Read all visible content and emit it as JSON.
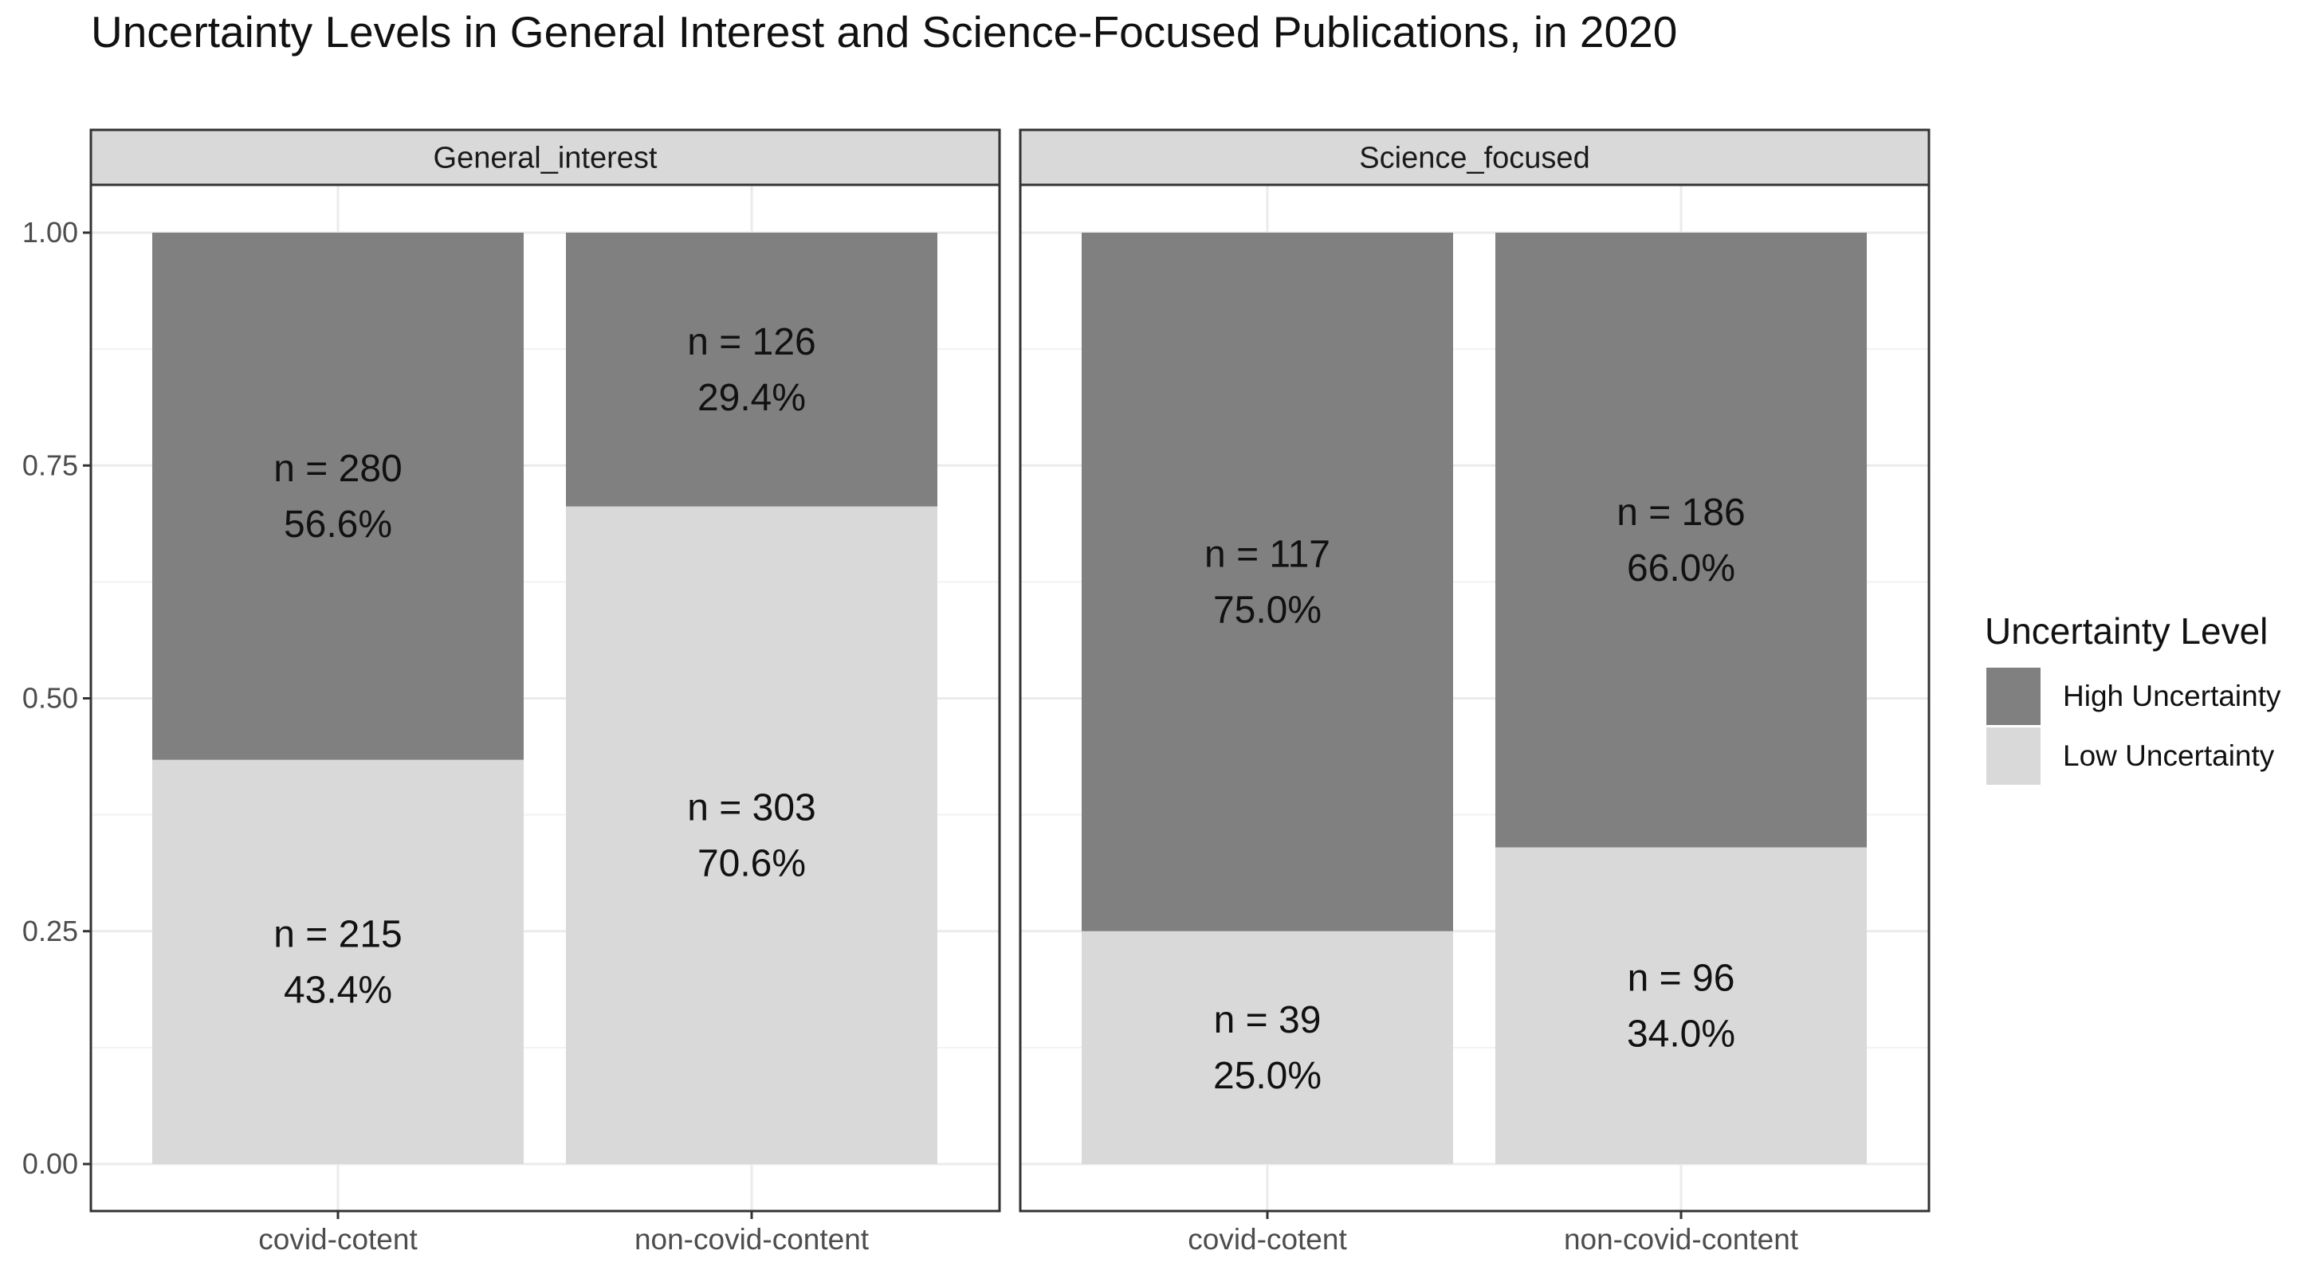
{
  "chart_data": {
    "type": "bar",
    "stacked": true,
    "title": "Uncertainty Levels in General Interest and Science-Focused Publications, in 2020",
    "facets": [
      "General_interest",
      "Science_focused"
    ],
    "categories": [
      "covid-cotent",
      "non-covid-content"
    ],
    "ylim": [
      0,
      1
    ],
    "yticks": [
      "0.00",
      "0.25",
      "0.50",
      "0.75",
      "1.00"
    ],
    "ytick_values": [
      0,
      0.25,
      0.5,
      0.75,
      1.0
    ],
    "grid": true,
    "legend": {
      "title": "Uncertainty Level",
      "position": "right",
      "entries": [
        {
          "name": "High Uncertainty",
          "color": "#808080"
        },
        {
          "name": "Low Uncertainty",
          "color": "#d9d9d9"
        }
      ]
    },
    "panels": [
      {
        "facet": "General_interest",
        "bars": [
          {
            "category": "covid-cotent",
            "low": {
              "n": 215,
              "pct": 0.434,
              "n_label": "n = 215",
              "pct_label": "43.4%"
            },
            "high": {
              "n": 280,
              "pct": 0.566,
              "n_label": "n = 280",
              "pct_label": "56.6%"
            }
          },
          {
            "category": "non-covid-content",
            "low": {
              "n": 303,
              "pct": 0.706,
              "n_label": "n = 303",
              "pct_label": "70.6%"
            },
            "high": {
              "n": 126,
              "pct": 0.294,
              "n_label": "n = 126",
              "pct_label": "29.4%"
            }
          }
        ]
      },
      {
        "facet": "Science_focused",
        "bars": [
          {
            "category": "covid-cotent",
            "low": {
              "n": 39,
              "pct": 0.25,
              "n_label": "n = 39",
              "pct_label": "25.0%"
            },
            "high": {
              "n": 117,
              "pct": 0.75,
              "n_label": "n = 117",
              "pct_label": "75.0%"
            }
          },
          {
            "category": "non-covid-content",
            "low": {
              "n": 96,
              "pct": 0.34,
              "n_label": "n = 96",
              "pct_label": "34.0%"
            },
            "high": {
              "n": 186,
              "pct": 0.66,
              "n_label": "n = 186",
              "pct_label": "66.0%"
            }
          }
        ]
      }
    ],
    "colors": {
      "high": "#808080",
      "low": "#d9d9d9",
      "strip": "#d9d9d9",
      "grid": "#ebebeb",
      "panel_border": "#333333"
    }
  }
}
